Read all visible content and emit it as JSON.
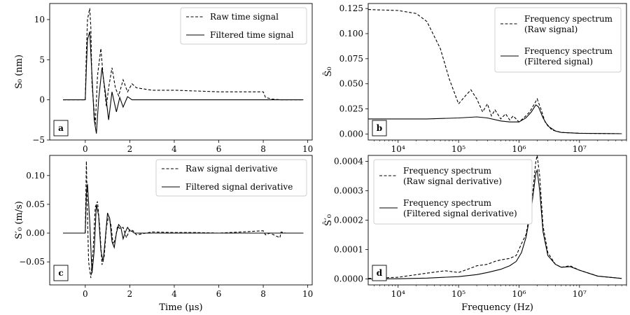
{
  "chart_data": [
    {
      "id": "a",
      "type": "line",
      "panel_label": "a",
      "xscale": "linear",
      "xlim": [
        -1.6,
        10.2
      ],
      "ylim": [
        -5,
        12
      ],
      "xticks": [
        0,
        2,
        4,
        6,
        8,
        10
      ],
      "xticklabels": [
        "0",
        "2",
        "4",
        "6",
        "8",
        "10"
      ],
      "yticks": [
        -5,
        0,
        5,
        10
      ],
      "yticklabels": [
        "−5",
        "0",
        "5",
        "10"
      ],
      "xlabel": "",
      "ylabel": "S₀ (nm)",
      "legend": "top-right",
      "series": [
        {
          "name": "Raw time signal",
          "style": "dashed",
          "x": [
            -1,
            0,
            0.05,
            0.1,
            0.2,
            0.25,
            0.3,
            0.45,
            0.55,
            0.7,
            0.8,
            0.95,
            1.05,
            1.2,
            1.35,
            1.5,
            1.7,
            1.9,
            2.1,
            2.3,
            3,
            4,
            5,
            6,
            7,
            8,
            8.1,
            8.4,
            8.8,
            9.8
          ],
          "y": [
            0,
            0,
            6,
            10,
            11.4,
            9,
            2,
            -3.2,
            3,
            6.4,
            3,
            -0.8,
            1.5,
            4,
            1.5,
            0.5,
            2.5,
            1,
            2,
            1.5,
            1.2,
            1.2,
            1.1,
            1,
            1,
            1,
            0.3,
            0.1,
            0,
            0
          ]
        },
        {
          "name": "Filtered time signal",
          "style": "solid",
          "x": [
            -1,
            0,
            0.05,
            0.1,
            0.2,
            0.3,
            0.4,
            0.5,
            0.6,
            0.75,
            0.9,
            1.05,
            1.2,
            1.4,
            1.55,
            1.7,
            1.9,
            2.1,
            2.3,
            3,
            9.8
          ],
          "y": [
            0,
            0,
            4,
            7.5,
            8.5,
            3,
            -2.5,
            -4.2,
            0,
            4.0,
            1,
            -2.5,
            1.0,
            -1.5,
            0.3,
            -0.9,
            0.4,
            0,
            0,
            0,
            0
          ]
        }
      ]
    },
    {
      "id": "b",
      "type": "line",
      "panel_label": "b",
      "xscale": "log",
      "xlim": [
        3200,
        60000000
      ],
      "ylim": [
        -0.006,
        0.13
      ],
      "xticks": [
        10000,
        100000,
        1000000,
        10000000
      ],
      "xticklabels": [
        "10⁴",
        "10⁵",
        "10⁶",
        "10⁷"
      ],
      "yticks": [
        0,
        0.025,
        0.05,
        0.075,
        0.1,
        0.125
      ],
      "yticklabels": [
        "0.000",
        "0.025",
        "0.050",
        "0.075",
        "0.100",
        "0.125"
      ],
      "xlabel": "",
      "ylabel": "Ŝ₀",
      "legend": "top-right",
      "series": [
        {
          "name": "Frequency spectrum (Raw signal)",
          "style": "dashed",
          "x": [
            3200,
            10000,
            20000,
            30000,
            50000,
            70000,
            100000,
            130000,
            160000,
            200000,
            250000,
            300000,
            350000,
            400000,
            500000,
            600000,
            700000,
            800000,
            1000000,
            1200000,
            1500000,
            1800000,
            2000000,
            2300000,
            2700000,
            3500000,
            5000000,
            10000000,
            50000000
          ],
          "y": [
            0.124,
            0.123,
            0.12,
            0.112,
            0.085,
            0.055,
            0.03,
            0.038,
            0.044,
            0.035,
            0.022,
            0.03,
            0.018,
            0.024,
            0.015,
            0.02,
            0.014,
            0.018,
            0.012,
            0.016,
            0.022,
            0.03,
            0.035,
            0.025,
            0.012,
            0.004,
            0.0015,
            0.0007,
            0.0003
          ]
        },
        {
          "name": "Frequency spectrum (Filtered signal)",
          "style": "solid",
          "x": [
            3200,
            10000,
            30000,
            100000,
            200000,
            300000,
            500000,
            700000,
            1000000,
            1300000,
            1600000,
            1900000,
            2100000,
            2500000,
            3000000,
            4000000,
            5000000,
            10000000,
            50000000
          ],
          "y": [
            0.015,
            0.015,
            0.015,
            0.016,
            0.017,
            0.016,
            0.013,
            0.012,
            0.012,
            0.016,
            0.022,
            0.029,
            0.027,
            0.016,
            0.008,
            0.003,
            0.0015,
            0.0007,
            0.0003
          ]
        }
      ]
    },
    {
      "id": "c",
      "type": "line",
      "panel_label": "c",
      "xscale": "linear",
      "xlim": [
        -1.6,
        10.2
      ],
      "ylim": [
        -0.09,
        0.135
      ],
      "xticks": [
        0,
        2,
        4,
        6,
        8,
        10
      ],
      "xticklabels": [
        "0",
        "2",
        "4",
        "6",
        "8",
        "10"
      ],
      "yticks": [
        -0.05,
        0,
        0.05,
        0.1
      ],
      "yticklabels": [
        "−0.05",
        "0.00",
        "0.05",
        "0.10"
      ],
      "xlabel": "Time (μs)",
      "ylabel": "S′₀ (m/s)",
      "legend": "top-right",
      "series": [
        {
          "name": "Raw signal derivative",
          "style": "dashed",
          "x": [
            -1,
            0,
            0.05,
            0.1,
            0.15,
            0.25,
            0.35,
            0.45,
            0.55,
            0.65,
            0.75,
            0.85,
            0.95,
            1.05,
            1.15,
            1.25,
            1.35,
            1.45,
            1.55,
            1.7,
            1.85,
            2.0,
            2.15,
            2.3,
            3,
            4,
            5,
            6,
            7,
            8,
            8.1,
            8.3,
            8.75,
            8.8,
            9.0,
            9.8
          ],
          "y": [
            0,
            0,
            0.125,
            0.03,
            -0.05,
            -0.078,
            -0.03,
            0.045,
            0.055,
            0.01,
            -0.055,
            -0.04,
            0.01,
            0.03,
            0.015,
            -0.02,
            -0.01,
            0.012,
            0.008,
            0.01,
            -0.008,
            0.006,
            0.004,
            -0.003,
            0.002,
            0.001,
            0.001,
            0.0,
            0.002,
            0.004,
            -0.003,
            0.0,
            -0.008,
            0.002,
            0.0,
            0
          ]
        },
        {
          "name": "Filtered signal derivative",
          "style": "solid",
          "x": [
            -1,
            0,
            0.05,
            0.1,
            0.2,
            0.3,
            0.4,
            0.5,
            0.6,
            0.7,
            0.8,
            0.9,
            1.0,
            1.1,
            1.2,
            1.3,
            1.4,
            1.5,
            1.6,
            1.7,
            1.8,
            1.9,
            2.0,
            2.1,
            2.2,
            9.8
          ],
          "y": [
            0,
            0,
            0.07,
            0.085,
            0.02,
            -0.07,
            -0.03,
            0.05,
            0.03,
            -0.03,
            -0.05,
            -0.01,
            0.035,
            0.025,
            -0.015,
            -0.025,
            0.0,
            0.015,
            0.01,
            -0.01,
            0.002,
            0.01,
            0.004,
            0.003,
            0.0,
            0
          ]
        }
      ]
    },
    {
      "id": "d",
      "type": "line",
      "panel_label": "d",
      "xscale": "log",
      "xlim": [
        3200,
        60000000
      ],
      "ylim": [
        -2e-05,
        0.00042
      ],
      "xticks": [
        10000,
        100000,
        1000000,
        10000000
      ],
      "xticklabels": [
        "10⁴",
        "10⁵",
        "10⁶",
        "10⁷"
      ],
      "yticks": [
        0,
        0.0001,
        0.0002,
        0.0003,
        0.0004
      ],
      "yticklabels": [
        "0.0000",
        "0.0001",
        "0.0002",
        "0.0003",
        "0.0004"
      ],
      "xlabel": "Frequency (Hz)",
      "ylabel": "Ŝ′₀",
      "legend": "top-left",
      "series": [
        {
          "name": "Frequency spectrum (Raw signal derivative)",
          "style": "dashed",
          "x": [
            3200,
            10000,
            30000,
            60000,
            100000,
            150000,
            200000,
            300000,
            400000,
            500000,
            700000,
            900000,
            1100000,
            1300000,
            1600000,
            1900000,
            2000000,
            2200000,
            2500000,
            3000000,
            4000000,
            5000000,
            7000000,
            10000000,
            20000000,
            50000000
          ],
          "y": [
            2e-06,
            6e-06,
            2e-05,
            2.8e-05,
            2.2e-05,
            3.5e-05,
            4.5e-05,
            5e-05,
            6e-05,
            6.5e-05,
            7e-05,
            8e-05,
            0.00012,
            0.00015,
            0.00025,
            0.0004,
            0.00042,
            0.00035,
            0.00018,
            9e-05,
            5e-05,
            4e-05,
            4.5e-05,
            3e-05,
            1e-05,
            2e-06
          ]
        },
        {
          "name": "Frequency spectrum (Filtered signal derivative)",
          "style": "solid",
          "x": [
            3200,
            10000,
            30000,
            100000,
            200000,
            300000,
            500000,
            700000,
            900000,
            1100000,
            1300000,
            1600000,
            1900000,
            2000000,
            2200000,
            2500000,
            3000000,
            4000000,
            5000000,
            7000000,
            10000000,
            20000000,
            50000000
          ],
          "y": [
            3e-07,
            1e-06,
            3e-06,
            8e-06,
            1.5e-05,
            2.2e-05,
            3.3e-05,
            4.5e-05,
            6e-05,
            9e-05,
            0.00014,
            0.00024,
            0.00036,
            0.00037,
            0.0003,
            0.00016,
            8e-05,
            5e-05,
            4e-05,
            4.2e-05,
            3e-05,
            1e-05,
            2e-06
          ]
        }
      ]
    }
  ]
}
